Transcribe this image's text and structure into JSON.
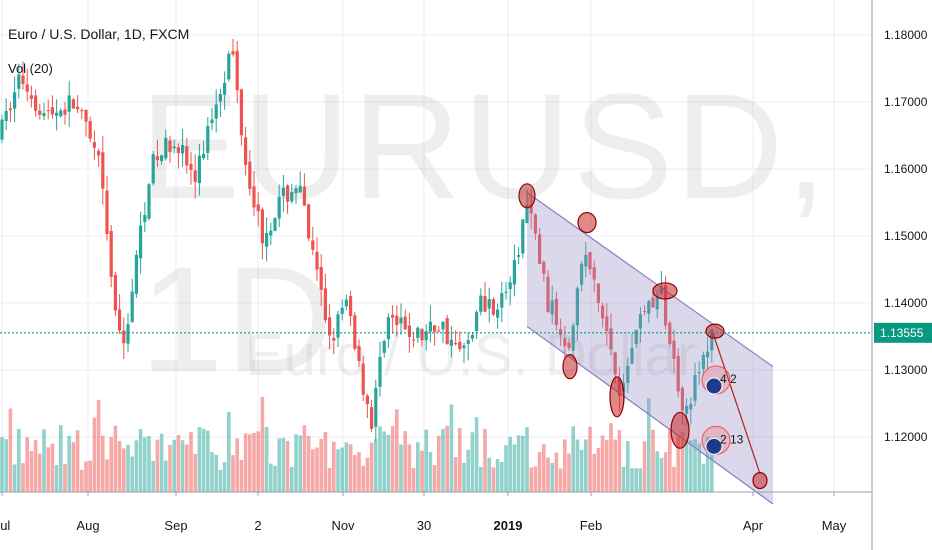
{
  "header": {
    "symbol_line": "Euro / U.S. Dollar, 1D, FXCM",
    "indicator": "Vol (20)"
  },
  "watermark": {
    "big": "EURUSD, 1D",
    "small": "Euro / U.S. Dollar"
  },
  "chart_data": {
    "type": "candlestick",
    "title": "Euro / U.S. Dollar, 1D, FXCM",
    "y_ticks": [
      "1.18000",
      "1.17000",
      "1.16000",
      "1.15000",
      "1.14000",
      "1.13000",
      "1.12000"
    ],
    "y_tick_values": [
      1.18,
      1.17,
      1.16,
      1.15,
      1.14,
      1.13,
      1.12
    ],
    "ylim": [
      1.114,
      1.184
    ],
    "x_ticks": [
      "Jul",
      "Aug",
      "Sep",
      "2",
      "Nov",
      "30",
      "2019",
      "Feb",
      "Apr",
      "May"
    ],
    "last_price": "1.13555",
    "last_price_value": 1.13555,
    "channel_upper": [
      {
        "date": "2019-01-10",
        "price": 1.1565
      },
      {
        "date": "2019-03-25",
        "price": 1.1305
      }
    ],
    "channel_lower": [
      {
        "date": "2019-01-10",
        "price": 1.1365
      },
      {
        "date": "2019-03-25",
        "price": 1.11
      }
    ],
    "badges": [
      "4 2",
      "2 13"
    ],
    "colors": {
      "up": "#26a69a",
      "down": "#ef5350",
      "channel": "#9c8ec9",
      "marker": "#c62828",
      "price_line": "#089981"
    }
  }
}
